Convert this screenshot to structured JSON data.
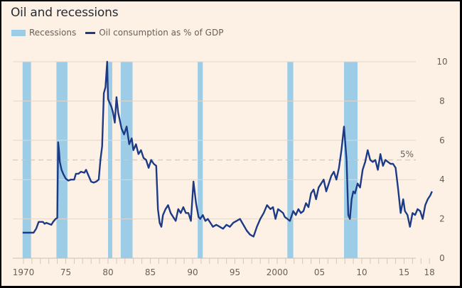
{
  "chart_data": {
    "type": "line",
    "title": "Oil and recessions",
    "xlabel": "",
    "ylabel": "",
    "legend": [
      {
        "label": "Recessions",
        "kind": "band",
        "color": "#9dcde6"
      },
      {
        "label": "Oil consumption as % of GDP",
        "kind": "line",
        "color": "#1c3a86"
      }
    ],
    "legend_position": "top-left",
    "xlim": [
      1969.7,
      2018.9
    ],
    "ylim": [
      0,
      10
    ],
    "x_ticks": [
      1970,
      1975,
      1980,
      1985,
      1990,
      1995,
      2000,
      2005,
      2010,
      2015,
      2018
    ],
    "x_tick_labels": [
      "1970",
      "75",
      "80",
      "85",
      "90",
      "95",
      "2000",
      "05",
      "10",
      "15",
      "18"
    ],
    "y_ticks": [
      0,
      2,
      4,
      6,
      8,
      10
    ],
    "y_tick_labels": [
      "0",
      "2",
      "4",
      "6",
      "8",
      "10"
    ],
    "y_axis_side": "right",
    "grid": true,
    "reference_line": {
      "y": 5,
      "label": "5%",
      "style": "dashed"
    },
    "recessions": [
      [
        1969.9,
        1970.9
      ],
      [
        1973.9,
        1975.2
      ],
      [
        1980.0,
        1980.5
      ],
      [
        1981.5,
        1982.9
      ],
      [
        1990.6,
        1991.2
      ],
      [
        2001.2,
        2001.9
      ],
      [
        2007.9,
        2009.5
      ]
    ],
    "series": [
      {
        "name": "Oil consumption as % of GDP",
        "x": [
          1969.9,
          1971.2,
          1971.5,
          1971.8,
          1972.3,
          1972.5,
          1972.7,
          1973.3,
          1973.5,
          1973.8,
          1974.0,
          1974.1,
          1974.2,
          1974.3,
          1974.5,
          1974.7,
          1975.0,
          1975.3,
          1975.6,
          1976.0,
          1976.2,
          1976.5,
          1976.8,
          1977.2,
          1977.4,
          1977.6,
          1978.0,
          1978.3,
          1978.6,
          1978.9,
          1979.1,
          1979.3,
          1979.5,
          1979.7,
          1979.9,
          1980.0,
          1980.2,
          1980.4,
          1980.6,
          1980.8,
          1981.0,
          1981.2,
          1981.4,
          1981.6,
          1981.9,
          1982.2,
          1982.5,
          1982.8,
          1983.0,
          1983.3,
          1983.6,
          1983.9,
          1984.2,
          1984.5,
          1984.8,
          1985.1,
          1985.4,
          1985.7,
          1985.9,
          1986.1,
          1986.3,
          1986.5,
          1986.8,
          1987.1,
          1987.4,
          1987.7,
          1988.0,
          1988.3,
          1988.6,
          1988.9,
          1989.2,
          1989.5,
          1989.8,
          1990.1,
          1990.4,
          1990.7,
          1990.9,
          1991.2,
          1991.5,
          1991.8,
          1992.1,
          1992.4,
          1992.8,
          1993.2,
          1993.6,
          1994.0,
          1994.4,
          1994.8,
          1995.2,
          1995.6,
          1996.0,
          1996.4,
          1996.8,
          1997.2,
          1997.6,
          1998.0,
          1998.4,
          1998.8,
          1999.2,
          1999.5,
          1999.8,
          2000.1,
          2000.4,
          2000.7,
          2000.9,
          2001.2,
          2001.5,
          2001.9,
          2002.2,
          2002.5,
          2002.8,
          2003.1,
          2003.4,
          2003.7,
          2004.0,
          2004.3,
          2004.6,
          2004.9,
          2005.2,
          2005.5,
          2005.8,
          2006.1,
          2006.4,
          2006.7,
          2007.0,
          2007.3,
          2007.6,
          2007.9,
          2008.2,
          2008.4,
          2008.6,
          2008.8,
          2009.0,
          2009.2,
          2009.5,
          2009.8,
          2010.1,
          2010.4,
          2010.7,
          2011.0,
          2011.3,
          2011.6,
          2011.9,
          2012.2,
          2012.5,
          2012.8,
          2013.1,
          2013.4,
          2013.7,
          2014.0,
          2014.3,
          2014.6,
          2014.9,
          2015.1,
          2015.4,
          2015.7,
          2016.0,
          2016.3,
          2016.6,
          2016.9,
          2017.2,
          2017.5,
          2017.8,
          2018.1,
          2018.3
        ],
        "values": [
          1.3,
          1.3,
          1.5,
          1.85,
          1.85,
          1.75,
          1.8,
          1.7,
          1.85,
          2.0,
          2.05,
          5.9,
          5.5,
          4.9,
          4.5,
          4.3,
          4.05,
          3.95,
          4.0,
          4.0,
          4.3,
          4.3,
          4.4,
          4.35,
          4.5,
          4.3,
          3.9,
          3.85,
          3.9,
          4.0,
          5.0,
          5.7,
          8.4,
          8.7,
          10.0,
          8.1,
          7.9,
          7.7,
          7.4,
          6.9,
          8.2,
          7.4,
          7.0,
          6.6,
          6.3,
          6.7,
          5.8,
          6.1,
          5.5,
          5.8,
          5.3,
          5.5,
          5.1,
          5.0,
          4.6,
          5.0,
          4.8,
          4.7,
          2.5,
          1.8,
          1.6,
          2.2,
          2.5,
          2.7,
          2.3,
          2.1,
          1.9,
          2.5,
          2.3,
          2.6,
          2.3,
          2.3,
          1.9,
          3.9,
          2.8,
          2.1,
          2.0,
          2.2,
          1.9,
          2.0,
          1.8,
          1.6,
          1.7,
          1.6,
          1.5,
          1.7,
          1.6,
          1.8,
          1.9,
          2.0,
          1.7,
          1.4,
          1.2,
          1.1,
          1.6,
          2.0,
          2.3,
          2.7,
          2.5,
          2.6,
          2.0,
          2.5,
          2.4,
          2.3,
          2.1,
          2.0,
          1.9,
          2.4,
          2.2,
          2.5,
          2.3,
          2.4,
          2.8,
          2.6,
          3.3,
          3.5,
          3.0,
          3.6,
          3.8,
          4.0,
          3.4,
          3.8,
          4.2,
          4.4,
          4.0,
          4.6,
          5.5,
          6.7,
          5.0,
          2.2,
          2.0,
          3.0,
          3.4,
          3.3,
          3.8,
          3.6,
          4.5,
          4.9,
          5.5,
          5.0,
          4.9,
          5.0,
          4.5,
          5.3,
          4.7,
          5.0,
          4.9,
          4.8,
          4.8,
          4.6,
          3.5,
          2.3,
          3.0,
          2.4,
          2.2,
          1.6,
          2.3,
          2.2,
          2.5,
          2.4,
          2.0,
          2.7,
          3.0,
          3.2,
          3.4
        ]
      }
    ]
  }
}
